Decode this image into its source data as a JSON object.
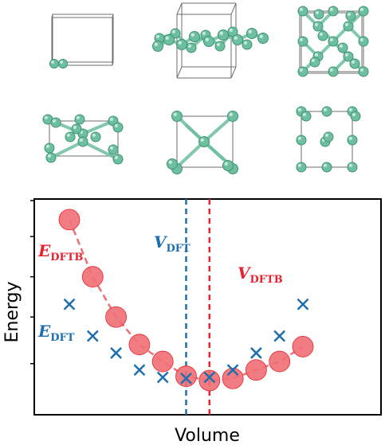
{
  "colors": {
    "dft": "#1f6fae",
    "dftb": "#e8232e",
    "dftb_fill": "#ef6f76",
    "atom": "#6dbf9f",
    "atom_dark": "#3f9474",
    "cell": "#6e6e6e"
  },
  "labels": {
    "e_dftb_main": "E",
    "e_dftb_sub": "DFTB",
    "e_dft_main": "E",
    "e_dft_sub": "DFT",
    "v_dft_main": "V",
    "v_dft_sub": "DFT",
    "v_dftb_main": "V",
    "v_dftb_sub": "DFTB"
  },
  "chart_data": {
    "type": "scatter",
    "xlabel": "Volume",
    "ylabel": "Energy",
    "xlim": [
      0,
      12
    ],
    "ylim": [
      0,
      10
    ],
    "grid": false,
    "series": [
      {
        "name": "E_DFTB",
        "marker": "circle",
        "connected": true,
        "x": [
          1,
          2,
          3,
          4,
          5,
          6,
          7,
          8,
          9,
          10,
          11
        ],
        "y": [
          7.9,
          5.2,
          3.3,
          2.0,
          1.2,
          0.5,
          0.3,
          0.4,
          0.8,
          1.2,
          1.9
        ]
      },
      {
        "name": "E_DFT",
        "marker": "x",
        "x": [
          1,
          2,
          3,
          4,
          5,
          6,
          7,
          8,
          9,
          10,
          11
        ],
        "y": [
          3.9,
          2.4,
          1.6,
          0.8,
          0.45,
          0.4,
          0.45,
          0.8,
          1.6,
          2.4,
          3.9
        ]
      }
    ],
    "vlines": [
      {
        "name": "V_DFT",
        "x": 6
      },
      {
        "name": "V_DFTB",
        "x": 7
      }
    ]
  },
  "structures": [
    {
      "name": "dimer"
    },
    {
      "name": "zigzag-chain"
    },
    {
      "name": "diamond"
    },
    {
      "name": "hexagonal"
    },
    {
      "name": "bcc"
    },
    {
      "name": "fcc"
    }
  ]
}
